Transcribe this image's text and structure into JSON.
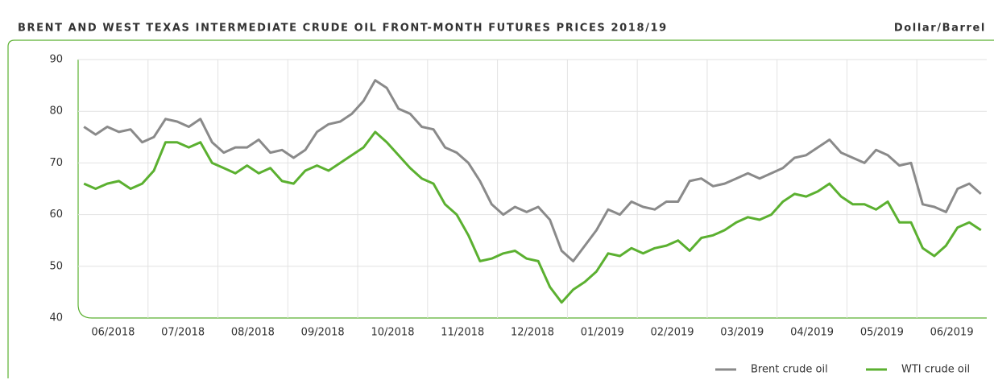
{
  "chart_data": {
    "type": "line",
    "title": "BRENT AND WEST TEXAS INTERMEDIATE CRUDE OIL FRONT-MONTH FUTURES PRICES 2018/19",
    "unit_label": "Dollar/Barrel",
    "categories": [
      null,
      null,
      null,
      "06/2018",
      null,
      null,
      null,
      null,
      null,
      "07/2018",
      null,
      null,
      null,
      null,
      null,
      "08/2018",
      null,
      null,
      null,
      null,
      null,
      "09/2018",
      null,
      null,
      null,
      null,
      null,
      "10/2018",
      null,
      null,
      null,
      null,
      null,
      "11/2018",
      null,
      null,
      null,
      null,
      null,
      "12/2018",
      null,
      null,
      null,
      null,
      null,
      "01/2019",
      null,
      null,
      null,
      null,
      null,
      "02/2019",
      null,
      null,
      null,
      null,
      null,
      "03/2019",
      null,
      null,
      null,
      null,
      null,
      "04/2019",
      null,
      null,
      null,
      null,
      null,
      "05/2019",
      null,
      null,
      null,
      null,
      null,
      "06/2019",
      null,
      null
    ],
    "series": [
      {
        "name": "Brent crude oil",
        "color": "#8a8a8a",
        "values": [
          77,
          75.5,
          77,
          76,
          76.5,
          74,
          75,
          78.5,
          78,
          77,
          78.5,
          74,
          72,
          73,
          73,
          74.5,
          72,
          72.5,
          71,
          72.5,
          76,
          77.5,
          78,
          79.5,
          82,
          86,
          84.5,
          80.5,
          79.5,
          77,
          76.5,
          73,
          72,
          70,
          66.5,
          62,
          60,
          61.5,
          60.5,
          61.5,
          59,
          53,
          51,
          54,
          57,
          61,
          60,
          62.5,
          61.5,
          61,
          62.5,
          62.5,
          66.5,
          67,
          65.5,
          66,
          67,
          68,
          67,
          68,
          69,
          71,
          71.5,
          73,
          74.5,
          72,
          71,
          70,
          72.5,
          71.5,
          69.5,
          70,
          62,
          61.5,
          60.5,
          65,
          66,
          64
        ]
      },
      {
        "name": "WTI crude oil",
        "color": "#5bb030",
        "values": [
          66,
          65,
          66,
          66.5,
          65,
          66,
          68.5,
          74,
          74,
          73,
          74,
          70,
          69,
          68,
          69.5,
          68,
          69,
          66.5,
          66,
          68.5,
          69.5,
          68.5,
          70,
          71.5,
          73,
          76,
          74,
          71.5,
          69,
          67,
          66,
          62,
          60,
          56,
          51,
          51.5,
          52.5,
          53,
          51.5,
          51,
          46,
          43,
          45.5,
          47,
          49,
          52.5,
          52,
          53.5,
          52.5,
          53.5,
          54,
          55,
          53,
          55.5,
          56,
          57,
          58.5,
          59.5,
          59,
          60,
          62.5,
          64,
          63.5,
          64.5,
          66,
          63.5,
          62,
          62,
          61,
          62.5,
          58.5,
          58.5,
          53.5,
          52,
          54,
          57.5,
          58.5,
          57
        ]
      }
    ],
    "ylim": [
      40,
      90
    ],
    "yticks": [
      40,
      50,
      60,
      70,
      80,
      90
    ],
    "grid": true
  }
}
